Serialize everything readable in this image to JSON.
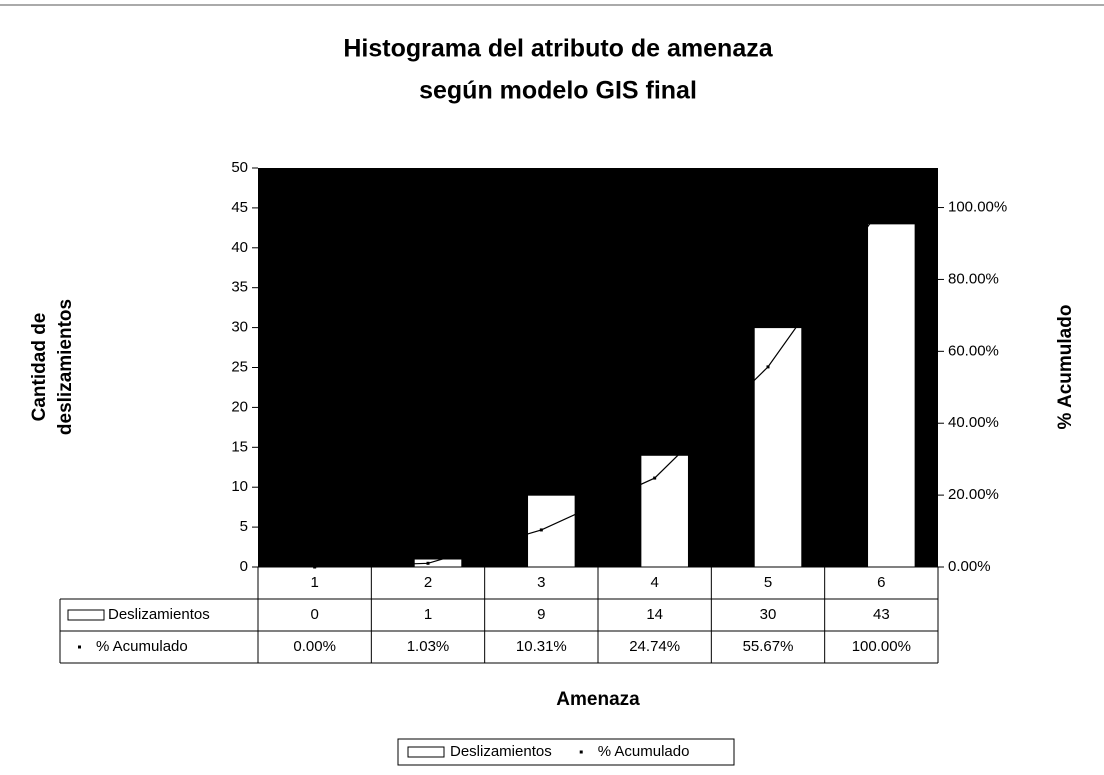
{
  "chart_data": {
    "type": "bar",
    "title": [
      "Histograma del atributo de amenaza",
      "según modelo GIS final"
    ],
    "xlabel": "Amenaza",
    "ylabel": [
      "Cantidad de",
      "deslizamientos"
    ],
    "y2label": "% Acumulado",
    "categories": [
      "1",
      "2",
      "3",
      "4",
      "5",
      "6"
    ],
    "series": [
      {
        "name": "Deslizamientos",
        "type": "bar",
        "color": "#ffffff",
        "values": [
          0,
          1,
          9,
          14,
          30,
          43
        ]
      },
      {
        "name": "% Acumulado",
        "type": "line",
        "axis": "y2",
        "color": "#000000",
        "values": [
          0,
          1.03,
          10.31,
          24.74,
          55.67,
          100
        ],
        "value_labels": [
          "0.00%",
          "1.03%",
          "10.31%",
          "24.74%",
          "55.67%",
          "100.00%"
        ]
      }
    ],
    "ylim": [
      0,
      50
    ],
    "yticks": [
      0,
      5,
      10,
      15,
      20,
      25,
      30,
      35,
      40,
      45,
      50
    ],
    "y2lim": [
      0,
      111
    ],
    "y2ticks": [
      {
        "value": 0,
        "label": "0.00%"
      },
      {
        "value": 20,
        "label": "20.00%"
      },
      {
        "value": 40,
        "label": "40.00%"
      },
      {
        "value": 60,
        "label": "60.00%"
      },
      {
        "value": 80,
        "label": "80.00%"
      },
      {
        "value": 100,
        "label": "100.00%"
      }
    ],
    "plot_background": "#000000",
    "legend": "bottom",
    "data_table": true
  }
}
